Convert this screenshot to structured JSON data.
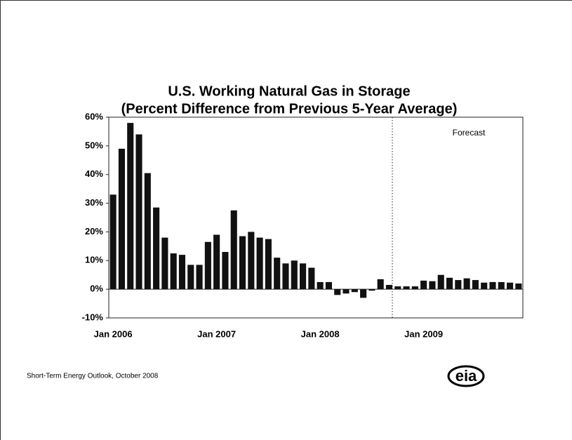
{
  "chart_data": {
    "type": "bar",
    "title": "U.S. Working Natural Gas in Storage",
    "subtitle": "(Percent Difference from Previous 5-Year Average)",
    "annotation": "Forecast",
    "source": "Short-Term Energy Outlook, October 2008",
    "logo": "eia",
    "color": "#111111",
    "categories": [
      "Jan 2006",
      null,
      null,
      null,
      null,
      null,
      null,
      null,
      null,
      null,
      null,
      null,
      "Jan 2007",
      null,
      null,
      null,
      null,
      null,
      null,
      null,
      null,
      null,
      null,
      null,
      "Jan 2008",
      null,
      null,
      null,
      null,
      null,
      null,
      null,
      null,
      null,
      null,
      null,
      "Jan 2009",
      null,
      null,
      null,
      null,
      null,
      null,
      null,
      null,
      null,
      null,
      null
    ],
    "values": [
      33,
      49,
      58,
      54,
      40.5,
      28.5,
      18,
      12.5,
      12,
      8.5,
      8.5,
      16.5,
      19,
      13,
      27.5,
      18.5,
      20,
      18,
      17.5,
      11,
      9,
      10,
      9,
      7.5,
      2.5,
      2.5,
      -2,
      -1.5,
      -1,
      -3,
      -0.5,
      3.5,
      1.5,
      1,
      1,
      1,
      3,
      2.8,
      5,
      4,
      3.2,
      3.8,
      3.2,
      2.3,
      2.5,
      2.5,
      2.3,
      2
    ],
    "ylim": [
      -10,
      60
    ],
    "yticks": [
      {
        "value": -10,
        "label": "-10%"
      },
      {
        "value": 0,
        "label": "0%"
      },
      {
        "value": 10,
        "label": "10%"
      },
      {
        "value": 20,
        "label": "20%"
      },
      {
        "value": 30,
        "label": "30%"
      },
      {
        "value": 40,
        "label": "40%"
      },
      {
        "value": 50,
        "label": "50%"
      },
      {
        "value": 60,
        "label": "60%"
      }
    ],
    "grid": false
  }
}
